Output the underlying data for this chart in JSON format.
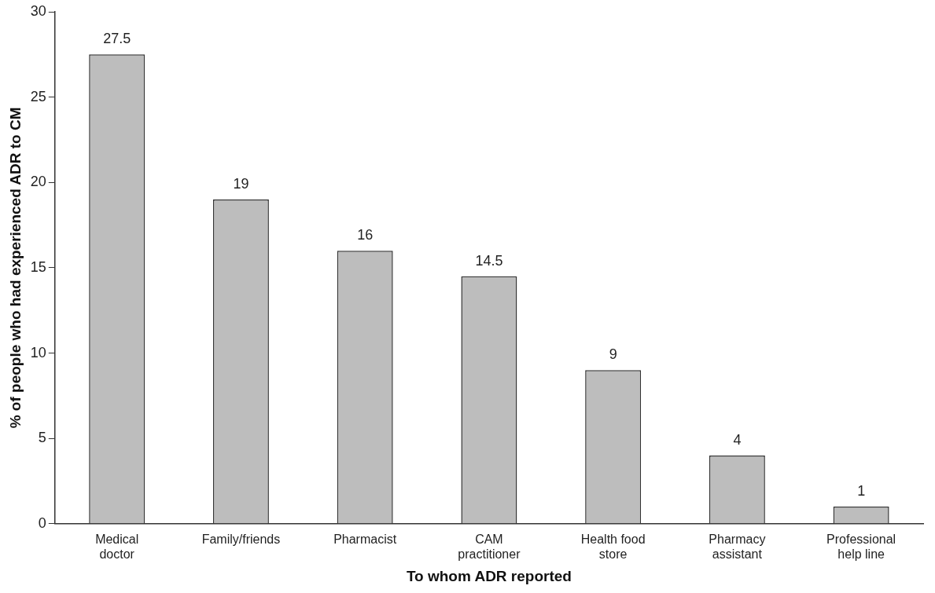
{
  "chart_data": {
    "type": "bar",
    "xlabel": "To whom ADR reported",
    "ylabel": "% of people who had experienced ADR to CM",
    "categories": [
      "Medical\ndoctor",
      "Family/friends",
      "Pharmacist",
      "CAM\npractitioner",
      "Health food\nstore",
      "Pharmacy\nassistant",
      "Professional\nhelp line"
    ],
    "values": [
      27.5,
      19,
      16,
      14.5,
      9,
      4,
      1
    ],
    "color": "#bdbdbd",
    "ylim": [
      0,
      30
    ],
    "yticks": [
      0,
      5,
      10,
      15,
      20,
      25,
      30
    ],
    "grid": false,
    "legend": false,
    "data_labels": true
  }
}
